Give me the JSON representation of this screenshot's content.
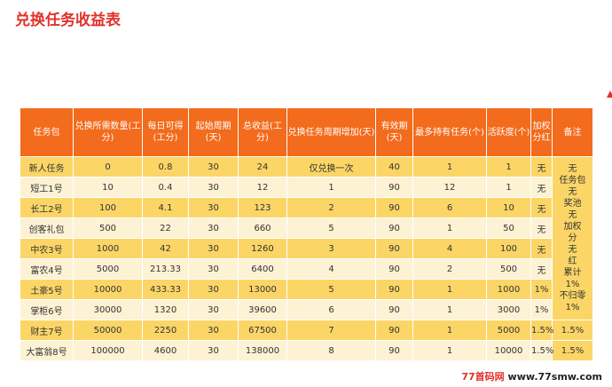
{
  "title": "兑换任务收益表",
  "headers": [
    "任务包",
    "兑换所需数量(工分)",
    "每日可得(工分)",
    "起始周期(天)",
    "总收益(工分)",
    "兑换任务周期增加(天)",
    "有效期(天)",
    "最多持有任务(个)",
    "活跃度(个)",
    "加权分红",
    "备注"
  ],
  "rows": [
    [
      "新人任务",
      "0",
      "0.8",
      "30",
      "24",
      "仅兑换一次",
      "40",
      "1",
      "1",
      "无"
    ],
    [
      "短工1号",
      "10",
      "0.4",
      "30",
      "12",
      "1",
      "90",
      "12",
      "1",
      "无"
    ],
    [
      "长工2号",
      "100",
      "4.1",
      "30",
      "123",
      "2",
      "90",
      "6",
      "10",
      "无"
    ],
    [
      "创客礼包",
      "500",
      "22",
      "30",
      "660",
      "5",
      "90",
      "1",
      "50",
      "无"
    ],
    [
      "中农3号",
      "1000",
      "42",
      "30",
      "1260",
      "3",
      "90",
      "4",
      "100",
      "无"
    ],
    [
      "富农4号",
      "5000",
      "213.33",
      "30",
      "6400",
      "4",
      "90",
      "2",
      "500",
      "无"
    ],
    [
      "土豪5号",
      "10000",
      "433.33",
      "30",
      "13000",
      "5",
      "90",
      "1",
      "1000",
      "1%"
    ],
    [
      "掌柜6号",
      "30000",
      "1320",
      "30",
      "39600",
      "6",
      "90",
      "1",
      "3000",
      "1%"
    ],
    [
      "财主7号",
      "50000",
      "2250",
      "30",
      "67500",
      "7",
      "90",
      "1",
      "5000",
      "1.5%"
    ],
    [
      "大富翁8号",
      "100000",
      "4600",
      "30",
      "138000",
      "8",
      "90",
      "1",
      "10000",
      "1.5%"
    ]
  ],
  "remarks": {
    "merged_note": [
      "无",
      "任务包",
      "奖池",
      "加权",
      "分",
      "红",
      "累计",
      "不归零"
    ],
    "overlap_values": [
      "无",
      "无",
      "无",
      "1%",
      "1%"
    ],
    "row9": "1.5%",
    "row10": "1.5%"
  },
  "watermark": {
    "brand": "77首码网",
    "url": "www.77smw.com"
  },
  "colors": {
    "header": "#f36b1c",
    "row_yellow": "#fbd667",
    "row_pale": "#fdf2d4",
    "title": "#e0322a"
  }
}
